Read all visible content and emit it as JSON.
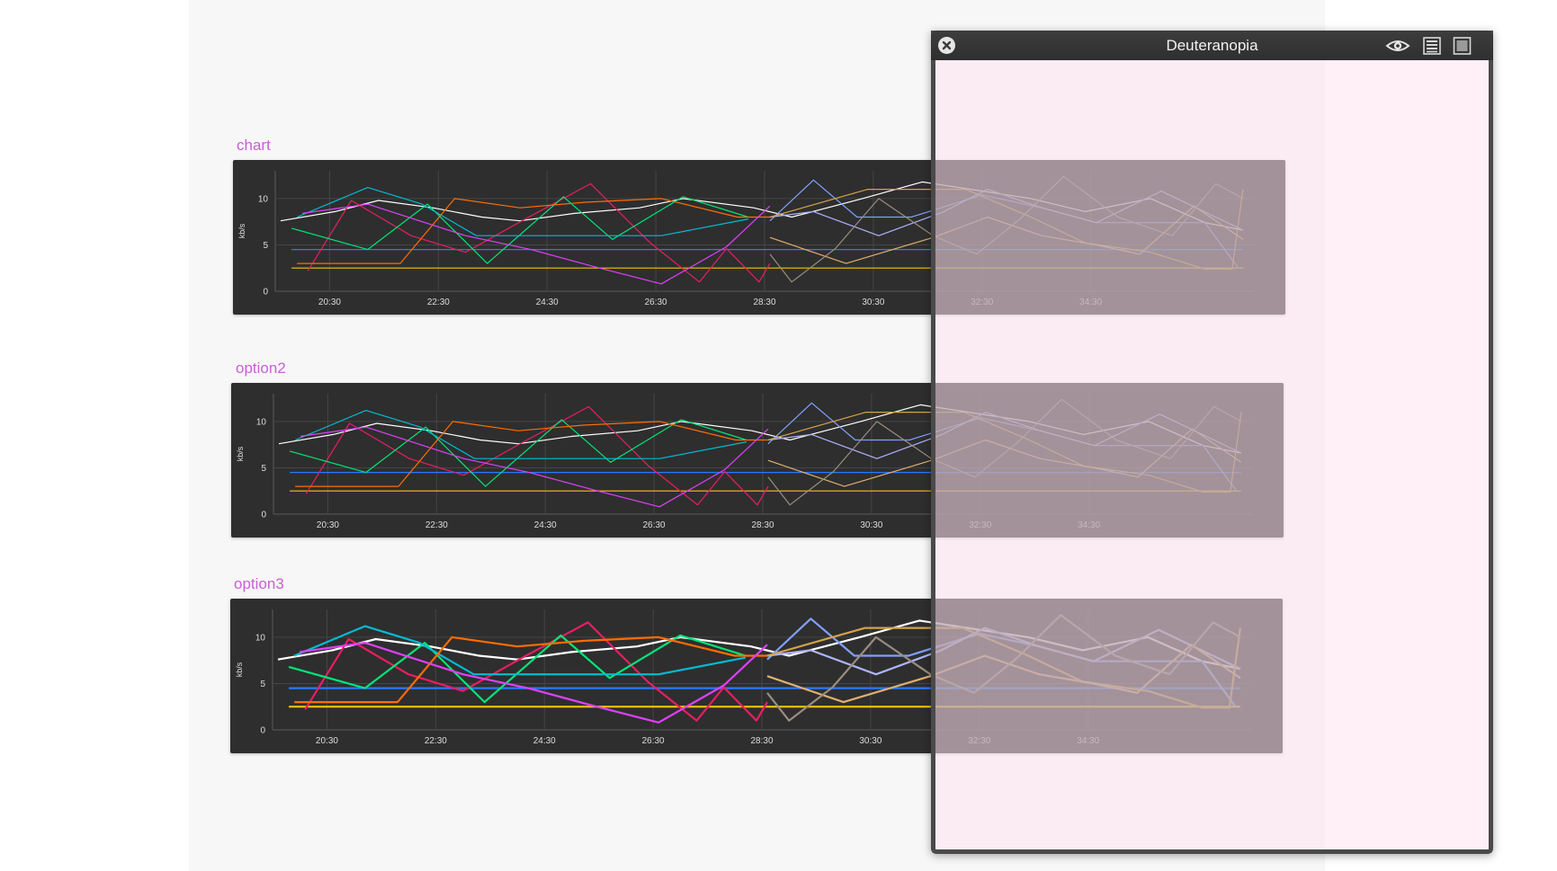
{
  "simulator": {
    "title": "Deuteranopia",
    "close_icon": "close-icon",
    "eye_icon": "eye-icon",
    "list_icon": "list-icon",
    "square_icon": "square-icon"
  },
  "charts": [
    {
      "label": "chart",
      "style": "thin"
    },
    {
      "label": "option2",
      "style": "thin"
    },
    {
      "label": "option3",
      "style": "thick"
    }
  ],
  "colors": {
    "label": "#c95ed8",
    "panel_bg": "#2e2e2e",
    "grid": "#454545",
    "axis_text": "#dddddd",
    "filter_tint": "#ffe4f0"
  },
  "chart_data": [
    {
      "type": "line",
      "title": "chart",
      "ylabel": "kb/s",
      "ylim": [
        0,
        13
      ],
      "yticks": [
        "0",
        "5",
        "10"
      ],
      "xticks": [
        "20:30",
        "22:30",
        "24:30",
        "26:30",
        "28:30",
        "30:30",
        "32:30",
        "34:30"
      ],
      "x_range": [
        19.5,
        37.5
      ],
      "series": [
        {
          "color": "#ffffff",
          "values": [
            [
              19.6,
              7.6
            ],
            [
              20.6,
              8.6
            ],
            [
              21.4,
              9.8
            ],
            [
              22.4,
              9.0
            ],
            [
              23.3,
              8.0
            ],
            [
              24.0,
              7.6
            ],
            [
              25.0,
              8.4
            ],
            [
              26.2,
              9.0
            ],
            [
              27.0,
              10.0
            ],
            [
              28.3,
              9.0
            ],
            [
              29.0,
              8.0
            ],
            [
              30.3,
              10.0
            ],
            [
              31.4,
              11.8
            ],
            [
              33.4,
              10.0
            ],
            [
              34.4,
              8.6
            ],
            [
              35.6,
              10.0
            ],
            [
              36.6,
              7.4
            ],
            [
              37.3,
              6.6
            ]
          ]
        },
        {
          "color": "#2979ff",
          "values": [
            [
              19.8,
              4.5
            ],
            [
              37.3,
              4.5
            ]
          ]
        },
        {
          "color": "#ffc107",
          "values": [
            [
              19.8,
              2.5
            ],
            [
              37.3,
              2.5
            ]
          ]
        },
        {
          "color": "#e91e63",
          "values": [
            [
              20.1,
              2.2
            ],
            [
              20.9,
              9.8
            ],
            [
              22.0,
              6.0
            ],
            [
              23.0,
              4.2
            ],
            [
              24.1,
              7.8
            ],
            [
              25.3,
              11.6
            ],
            [
              26.4,
              5.2
            ],
            [
              27.3,
              1.0
            ],
            [
              27.8,
              4.6
            ],
            [
              28.4,
              1.0
            ],
            [
              28.6,
              3.0
            ]
          ]
        },
        {
          "color": "#00e676",
          "values": [
            [
              19.8,
              6.8
            ],
            [
              21.2,
              4.5
            ],
            [
              22.3,
              9.4
            ],
            [
              23.4,
              3.0
            ],
            [
              24.8,
              10.2
            ],
            [
              25.7,
              5.6
            ],
            [
              27.0,
              10.2
            ],
            [
              28.2,
              8.0
            ]
          ]
        },
        {
          "color": "#00bcd4",
          "values": [
            [
              19.9,
              8.0
            ],
            [
              21.2,
              11.2
            ],
            [
              22.2,
              9.4
            ],
            [
              23.2,
              6.0
            ],
            [
              25.0,
              6.0
            ],
            [
              26.6,
              6.0
            ],
            [
              28.2,
              7.8
            ]
          ]
        },
        {
          "color": "#ff6d00",
          "values": [
            [
              19.9,
              3.0
            ],
            [
              21.8,
              3.0
            ],
            [
              22.8,
              10.0
            ],
            [
              24.0,
              9.0
            ],
            [
              25.2,
              9.6
            ],
            [
              26.6,
              10.0
            ],
            [
              28.0,
              8.0
            ],
            [
              28.6,
              8.0
            ]
          ]
        },
        {
          "color": "#e040fb",
          "values": [
            [
              20.0,
              8.4
            ],
            [
              21.2,
              9.4
            ],
            [
              23.0,
              6.0
            ],
            [
              24.2,
              4.5
            ],
            [
              25.4,
              2.6
            ],
            [
              26.6,
              0.8
            ],
            [
              27.8,
              4.8
            ],
            [
              28.6,
              9.2
            ]
          ]
        },
        {
          "color": "#80a0ff",
          "values": [
            [
              28.6,
              7.6
            ],
            [
              29.4,
              12.0
            ],
            [
              30.2,
              8.0
            ],
            [
              31.2,
              8.0
            ],
            [
              32.5,
              10.4
            ],
            [
              33.6,
              9.0
            ],
            [
              34.6,
              7.4
            ],
            [
              35.6,
              7.4
            ],
            [
              36.6,
              7.4
            ],
            [
              37.2,
              2.6
            ]
          ]
        },
        {
          "color": "#b0b4ff",
          "values": [
            [
              28.6,
              8.0
            ],
            [
              29.4,
              8.6
            ],
            [
              30.6,
              6.0
            ],
            [
              31.8,
              8.6
            ],
            [
              32.6,
              11.0
            ],
            [
              33.6,
              9.0
            ],
            [
              34.6,
              7.4
            ],
            [
              35.8,
              10.8
            ],
            [
              37.3,
              6.6
            ]
          ]
        },
        {
          "color": "#d4a24a",
          "values": [
            [
              28.6,
              8.0
            ],
            [
              30.4,
              11.0
            ],
            [
              32.2,
              11.0
            ],
            [
              33.4,
              8.0
            ],
            [
              34.4,
              5.2
            ],
            [
              35.6,
              4.2
            ],
            [
              36.6,
              2.4
            ],
            [
              37.1,
              2.4
            ],
            [
              37.3,
              11.0
            ]
          ]
        },
        {
          "color": "#e0b070",
          "values": [
            [
              28.6,
              5.8
            ],
            [
              30.0,
              3.0
            ],
            [
              31.6,
              5.8
            ],
            [
              32.6,
              8.0
            ],
            [
              33.6,
              6.0
            ],
            [
              34.6,
              5.0
            ],
            [
              35.4,
              4.0
            ],
            [
              36.4,
              9.2
            ],
            [
              37.3,
              5.6
            ]
          ]
        },
        {
          "color": "#9a8d80",
          "values": [
            [
              28.6,
              4.0
            ],
            [
              29.0,
              1.0
            ],
            [
              29.8,
              4.6
            ],
            [
              30.6,
              10.0
            ],
            [
              31.6,
              6.0
            ],
            [
              32.4,
              4.0
            ],
            [
              33.2,
              7.8
            ],
            [
              34.0,
              12.4
            ],
            [
              35.0,
              8.0
            ],
            [
              36.0,
              6.0
            ],
            [
              36.8,
              11.6
            ],
            [
              37.3,
              10.0
            ]
          ]
        }
      ]
    }
  ]
}
